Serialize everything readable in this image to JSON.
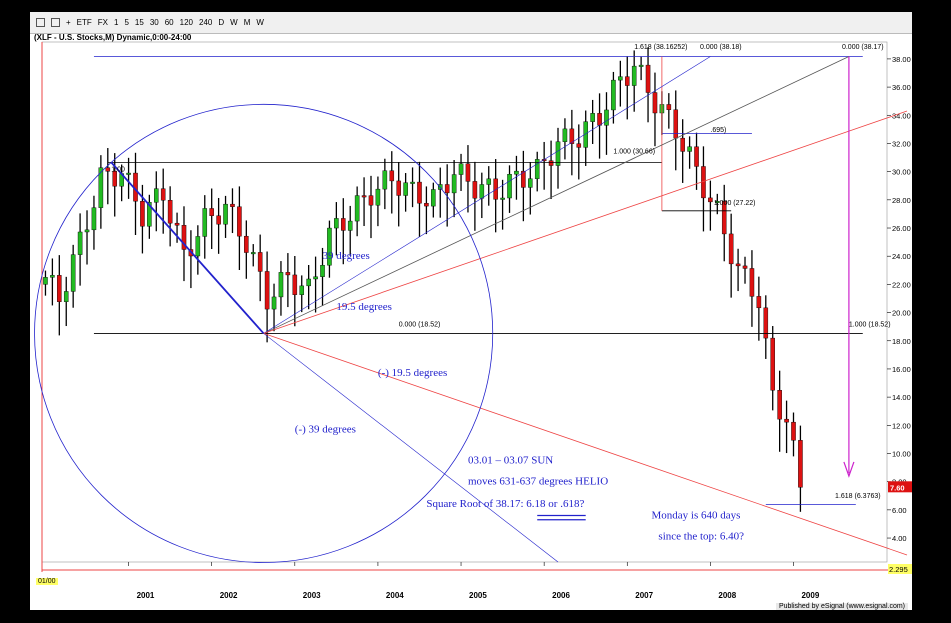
{
  "toolbar": {
    "items": [
      "ETF",
      "FX",
      "1",
      "5",
      "15",
      "30",
      "60",
      "120",
      "240",
      "D",
      "W",
      "M",
      "W"
    ]
  },
  "symbol_title": "(XLF - U.S. Stocks,M) Dynamic,0:00-24:00",
  "footer": "Published by eSignal (www.esignal.com)",
  "range_label": "01/00",
  "colors": {
    "up": "#22bb22",
    "down": "#dd1111",
    "annot": "#2222cc",
    "red_line": "#ee4444",
    "magenta": "#cc22cc",
    "gray_line": "#555555"
  },
  "chart_data": {
    "type": "candlestick",
    "x_ticks": [
      "2001",
      "2002",
      "2003",
      "2004",
      "2005",
      "2006",
      "2007",
      "2008",
      "2009"
    ],
    "y_ticks": [
      "38.00",
      "36.00",
      "34.00",
      "32.00",
      "30.00",
      "28.00",
      "26.00",
      "24.00",
      "22.00",
      "20.00",
      "18.00",
      "16.00",
      "14.00",
      "12.00",
      "10.00",
      "8.00",
      "6.00",
      "4.00"
    ],
    "ylim": [
      2.3,
      39.2
    ],
    "last_price": "7.60",
    "bottom_value": "2.295",
    "start": "2000-01",
    "waypoints": [
      [
        "2000-01",
        22.5
      ],
      [
        "2000-03",
        21.0
      ],
      [
        "2000-06",
        25.0
      ],
      [
        "2000-09",
        29.5
      ],
      [
        "2000-12",
        30.0
      ],
      [
        "2001-03",
        27.0
      ],
      [
        "2001-06",
        28.5
      ],
      [
        "2001-09",
        24.0
      ],
      [
        "2001-12",
        26.5
      ],
      [
        "2002-03",
        27.5
      ],
      [
        "2002-06",
        25.0
      ],
      [
        "2002-09",
        21.0
      ],
      [
        "2002-12",
        22.5
      ],
      [
        "2003-03",
        21.5
      ],
      [
        "2003-06",
        25.5
      ],
      [
        "2003-09",
        27.0
      ],
      [
        "2003-12",
        28.5
      ],
      [
        "2004-03",
        29.5
      ],
      [
        "2004-06",
        28.5
      ],
      [
        "2004-09",
        28.0
      ],
      [
        "2004-12",
        30.0
      ],
      [
        "2005-03",
        29.0
      ],
      [
        "2005-06",
        28.5
      ],
      [
        "2005-09",
        29.5
      ],
      [
        "2005-12",
        30.0
      ],
      [
        "2006-03",
        32.0
      ],
      [
        "2006-06",
        32.5
      ],
      [
        "2006-09",
        34.0
      ],
      [
        "2006-12",
        36.5
      ],
      [
        "2007-02",
        37.5
      ],
      [
        "2007-05",
        35.0
      ],
      [
        "2007-08",
        33.0
      ],
      [
        "2007-11",
        30.0
      ],
      [
        "2008-02",
        27.0
      ],
      [
        "2008-05",
        23.0
      ],
      [
        "2008-08",
        21.0
      ],
      [
        "2008-10",
        14.0
      ],
      [
        "2008-12",
        12.5
      ],
      [
        "2009-02",
        7.6
      ]
    ],
    "fib_labels": [
      {
        "text": "1.618 (38.16252)",
        "month": 85,
        "price": 38.7
      },
      {
        "text": "0.000 (38.18)",
        "month": 94.5,
        "price": 38.7
      },
      {
        "text": "0.000 (38.17)",
        "month": 115,
        "price": 38.7
      },
      {
        "text": "1.000 (30.66)",
        "month": 82,
        "price": 31.3
      },
      {
        "text": "1.000 (27.22)",
        "month": 96.5,
        "price": 27.65
      },
      {
        "text": ".695)",
        "month": 96,
        "price": 32.8
      },
      {
        "text": "0.000 (18.52)",
        "month": 51,
        "price": 19.0
      },
      {
        "text": "1.000 (18.52)",
        "month": 116,
        "price": 19.0
      },
      {
        "text": "1.618 (6.3763)",
        "month": 114,
        "price": 6.85
      },
      {
        "text": "1.00",
        "month": 9.5,
        "price": 30.0
      }
    ],
    "annotations": [
      {
        "text": "39 degrees",
        "month": 40,
        "price": 23.8
      },
      {
        "text": "19.5 degrees",
        "month": 42,
        "price": 20.2
      },
      {
        "text": "(-) 19.5 degrees",
        "month": 48,
        "price": 15.5
      },
      {
        "text": "(-) 39 degrees",
        "month": 36,
        "price": 11.5
      },
      {
        "text": "03.01 – 03.07 SUN",
        "month": 61,
        "price": 9.3
      },
      {
        "text": "moves 631-637 degrees HELIO",
        "month": 61,
        "price": 7.8
      },
      {
        "text": "Square Root of 38.17: 6.18 or .618?",
        "month": 55,
        "price": 6.2
      },
      {
        "text": "Monday is 640 days",
        "month": 87.5,
        "price": 5.4
      },
      {
        "text": "since the top: 6.40?",
        "month": 88.5,
        "price": 3.9
      }
    ]
  }
}
